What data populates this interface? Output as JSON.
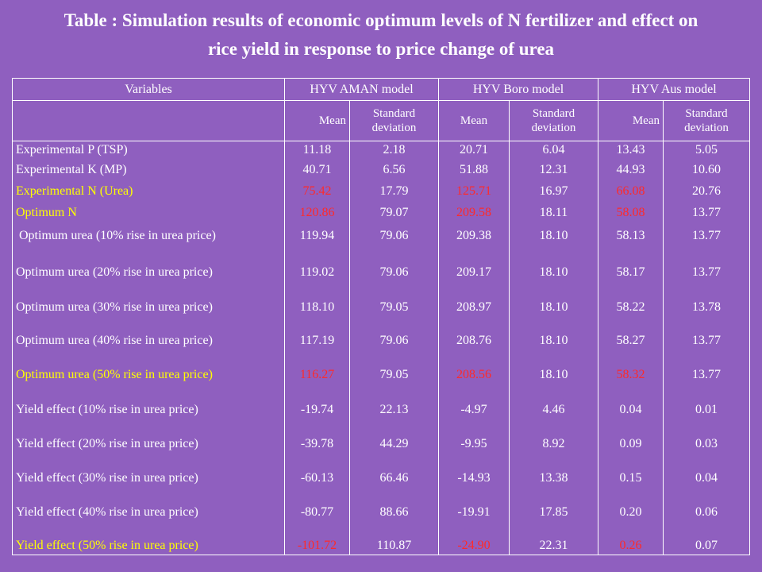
{
  "title": {
    "line1": "Table : Simulation results of economic optimum levels of N fertilizer and effect on",
    "line2": "rice yield in response to price change of urea"
  },
  "colors": {
    "background": "#8f5fbf",
    "text": "#ffffff",
    "highlight_label": "#ffff00",
    "highlight_value": "#ff2a2a"
  },
  "header": {
    "variables": "Variables",
    "aman": "HYV AMAN model",
    "boro": "HYV Boro model",
    "aus": "HYV Aus model",
    "mean": "Mean",
    "sd_line1": "Standard",
    "sd_line2": "deviation"
  },
  "rows": [
    {
      "label": "Experimental P (TSP)",
      "v": [
        "11.18",
        "2.18",
        "20.71",
        "6.04",
        "13.43",
        "5.05"
      ],
      "highlight": false
    },
    {
      "label": "Experimental K (MP)",
      "v": [
        "40.71",
        "6.56",
        "51.88",
        "12.31",
        "44.93",
        "10.60"
      ],
      "highlight": false
    },
    {
      "label": "Experimental N (Urea)",
      "v": [
        "75.42",
        "17.79",
        "125.71",
        "16.97",
        "66.08",
        "20.76"
      ],
      "highlight": true
    },
    {
      "label": "Optimum N",
      "v": [
        "120.86",
        "79.07",
        "209.58",
        "18.11",
        "58.08",
        "13.77"
      ],
      "highlight": true
    },
    {
      "label": "Optimum urea (10% rise in urea price)",
      "v": [
        "119.94",
        "79.06",
        "209.38",
        "18.10",
        "58.13",
        "13.77"
      ],
      "highlight": false
    },
    {
      "label": "Optimum urea (20% rise in urea price)",
      "v": [
        "119.02",
        "79.06",
        "209.17",
        "18.10",
        "58.17",
        "13.77"
      ],
      "highlight": false
    },
    {
      "label": "Optimum urea (30% rise in urea price)",
      "v": [
        "118.10",
        "79.05",
        "208.97",
        "18.10",
        "58.22",
        "13.78"
      ],
      "highlight": false
    },
    {
      "label": "Optimum urea (40% rise in urea price)",
      "v": [
        "117.19",
        "79.06",
        "208.76",
        "18.10",
        "58.27",
        "13.77"
      ],
      "highlight": false
    },
    {
      "label": "Optimum urea (50% rise in urea price)",
      "v": [
        "116.27",
        "79.05",
        "208.56",
        "18.10",
        "58.32",
        "13.77"
      ],
      "highlight": true
    },
    {
      "label": "Yield effect (10% rise in urea price)",
      "v": [
        "-19.74",
        "22.13",
        "-4.97",
        "4.46",
        "0.04",
        "0.01"
      ],
      "highlight": false
    },
    {
      "label": "Yield effect (20% rise in urea price)",
      "v": [
        "-39.78",
        "44.29",
        "-9.95",
        "8.92",
        "0.09",
        "0.03"
      ],
      "highlight": false
    },
    {
      "label": "Yield effect (30% rise in urea price)",
      "v": [
        "-60.13",
        "66.46",
        "-14.93",
        "13.38",
        "0.15",
        "0.04"
      ],
      "highlight": false
    },
    {
      "label": "Yield effect (40% rise in urea price)",
      "v": [
        "-80.77",
        "88.66",
        "-19.91",
        "17.85",
        "0.20",
        "0.06"
      ],
      "highlight": false
    },
    {
      "label": "Yield effect (50% rise in urea price)",
      "v": [
        "-101.72",
        "110.87",
        "-24.90",
        "22.31",
        "0.26",
        "0.07"
      ],
      "highlight": true
    }
  ]
}
